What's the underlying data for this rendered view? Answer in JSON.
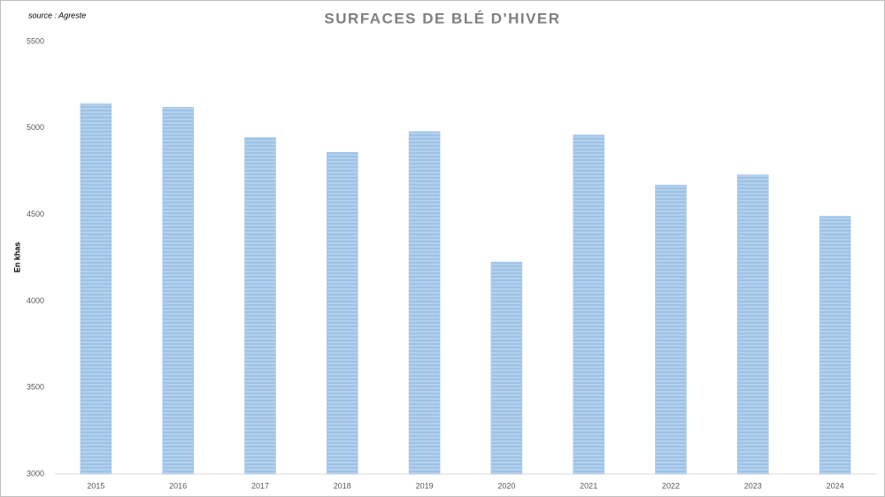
{
  "chart_data": {
    "type": "bar",
    "title": "SURFACES DE BLÉ D'HIVER",
    "source": "source : Agreste",
    "y_label": "En khas",
    "categories": [
      "2015",
      "2016",
      "2017",
      "2018",
      "2019",
      "2020",
      "2021",
      "2022",
      "2023",
      "2024"
    ],
    "values": [
      5140,
      5120,
      4945,
      4860,
      4980,
      4225,
      4960,
      4670,
      4730,
      4490
    ],
    "color": "#9dc3e6",
    "ylim": [
      3000,
      5500
    ],
    "yticks": [
      3000,
      3500,
      4000,
      4500,
      5000,
      5500
    ],
    "grid": false
  }
}
